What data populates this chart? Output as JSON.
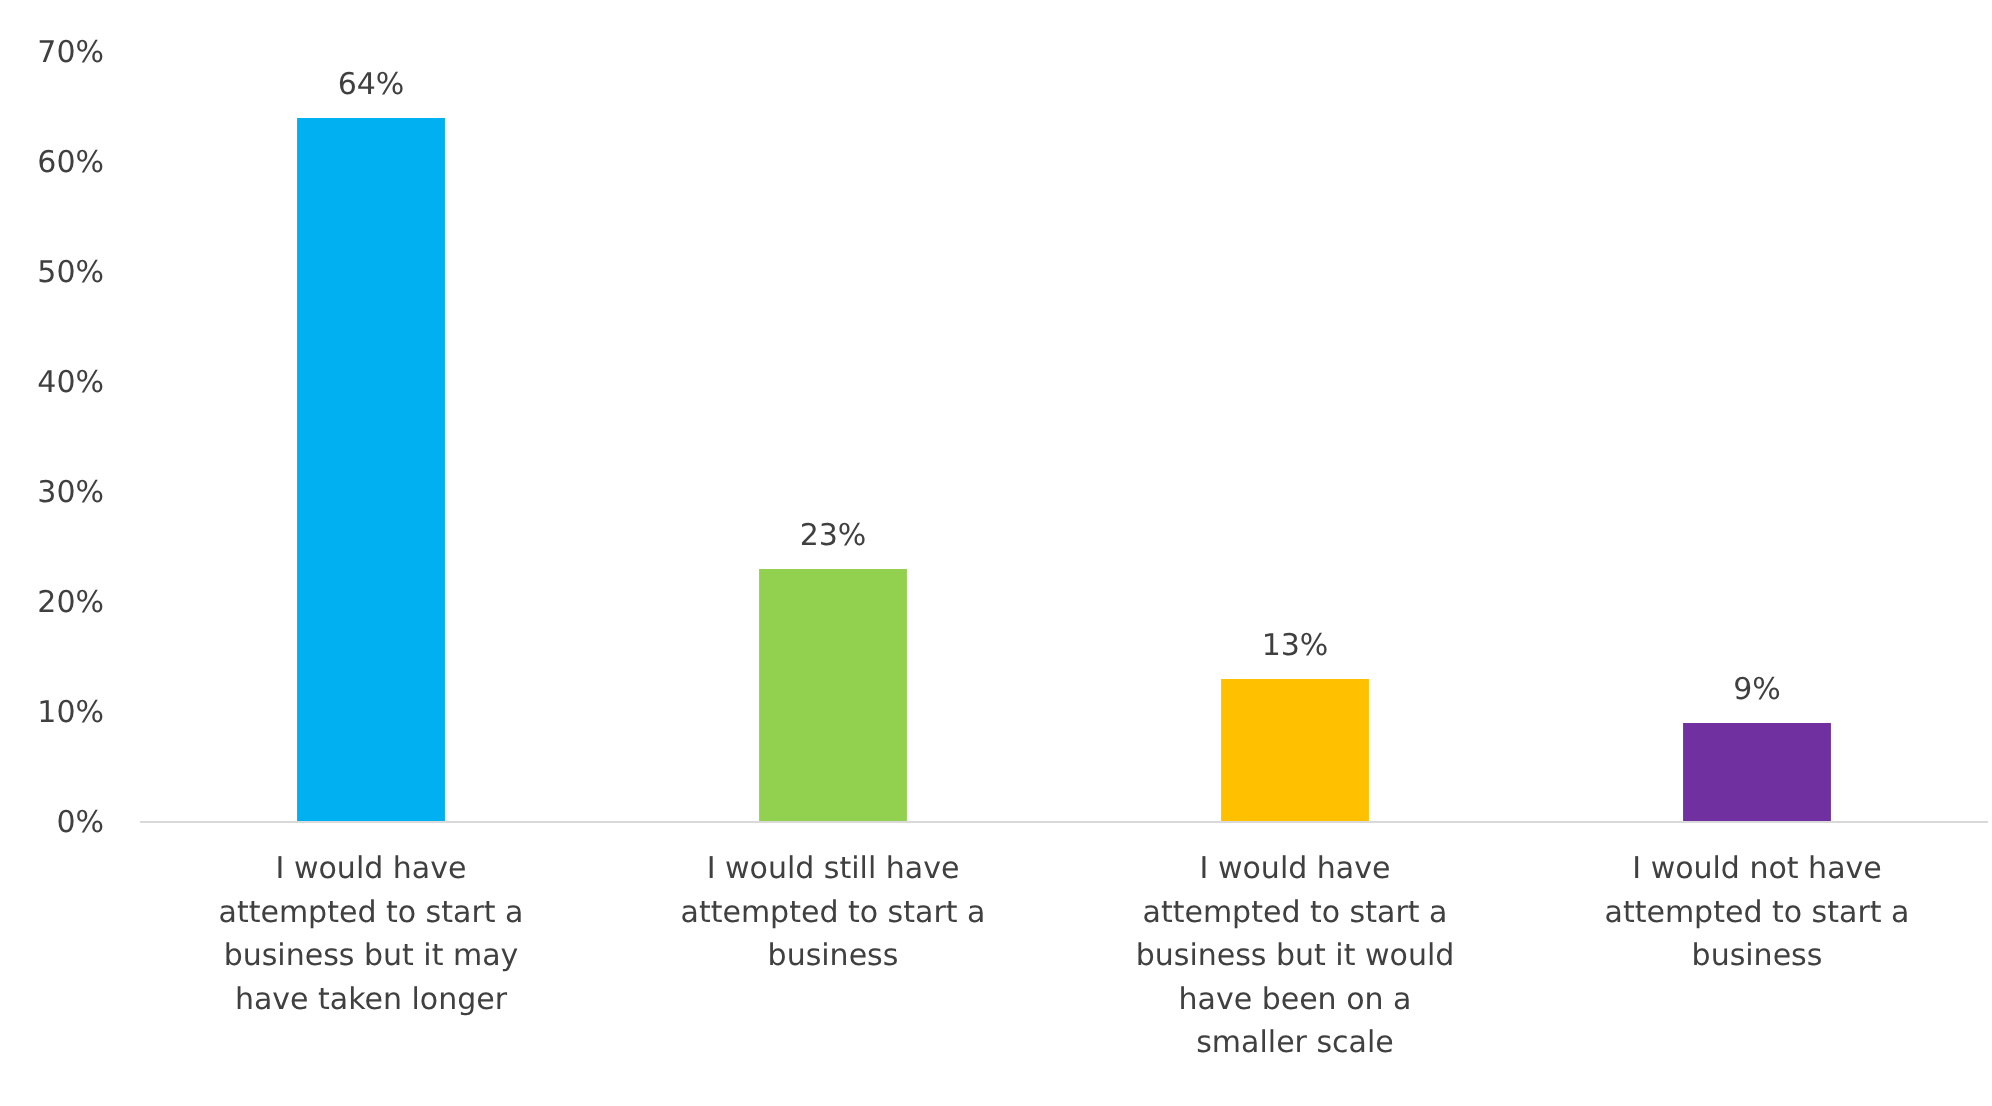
{
  "chart_data": {
    "type": "bar",
    "categories": [
      "I would have attempted to start a business but it may have taken longer",
      "I would still have attempted to start a business",
      "I would have attempted to start a business but it would have been on a smaller scale",
      "I would not have attempted to start a business"
    ],
    "values": [
      64,
      23,
      13,
      9
    ],
    "colors": [
      "#00b0f0",
      "#92d050",
      "#ffc000",
      "#7030a0"
    ],
    "ylim": [
      0,
      70
    ],
    "yticks": [
      {
        "value": 0,
        "label": "0%"
      },
      {
        "value": 10,
        "label": "10%"
      },
      {
        "value": 20,
        "label": "20%"
      },
      {
        "value": 30,
        "label": "30%"
      },
      {
        "value": 40,
        "label": "40%"
      },
      {
        "value": 50,
        "label": "50%"
      },
      {
        "value": 60,
        "label": "60%"
      },
      {
        "value": 70,
        "label": "70%"
      }
    ],
    "value_labels": [
      "64%",
      "23%",
      "13%",
      "9%"
    ]
  }
}
